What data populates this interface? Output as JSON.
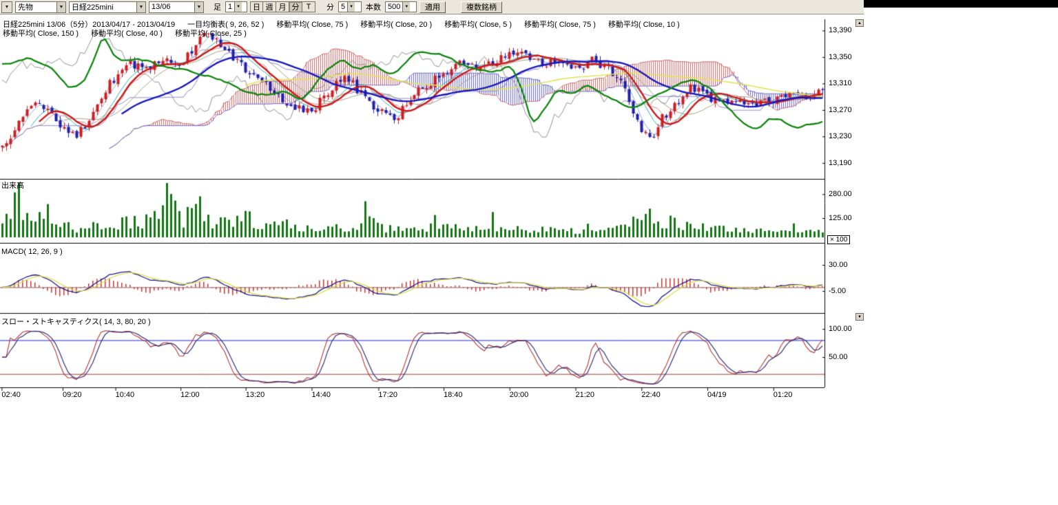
{
  "icons": {
    "dropdown_arrow": "▼",
    "scroll_up": "▲",
    "scroll_down": "▼"
  },
  "toolbar": {
    "category": "先物",
    "symbol": "日経225mini",
    "contract": "13/06",
    "bar_label": "足",
    "bar_value": "1",
    "period_buttons": [
      "日",
      "週",
      "月",
      "分",
      "T"
    ],
    "active_period": "分",
    "minute_label": "分",
    "minute_value": "5",
    "count_label": "本数",
    "count_value": "500",
    "apply_label": "適用",
    "multi_symbol_label": "複数銘柄"
  },
  "header": {
    "line1": [
      "日経225mini 13/06（5分）2013/04/17 - 2013/04/19",
      "一目均衡表( 9, 26, 52 )",
      "移動平均( Close, 75 )",
      "移動平均( Close, 20 )",
      "移動平均( Close, 5 )",
      "移動平均( Close, 75 )",
      "移動平均( Close, 10 )"
    ],
    "line2": [
      "移動平均( Close, 150 )",
      "移動平均( Close, 40 )",
      "移動平均( Close, 25 )"
    ]
  },
  "panels": {
    "volume_label": "出来高",
    "volume_multiplier": "× 100",
    "macd_label": "MACD( 12, 26, 9 )",
    "stoch_label": "スロー・ストキャスティクス( 14, 3, 80, 20 )"
  },
  "colors": {
    "up_candle": "#cc2020",
    "down_candle": "#2020aa",
    "volume": "#157515",
    "green_line": "#0d850d",
    "ma_red": "#cc1818",
    "ma_blue": "#1818bb",
    "ma_yellow": "#e2e258",
    "macd_line": "#1a1a88",
    "macd_signal": "#dcdc50",
    "macd_hist": "#cc3030",
    "stoch_k": "#b03030",
    "stoch_d": "#303078",
    "cloud_up": "#cc6a6a",
    "cloud_down": "#6a6acc"
  },
  "chart_data": {
    "type": "candlestick",
    "symbol": "日経225mini 13/06",
    "interval": "5分",
    "date_range": "2013/04/17 - 2013/04/19",
    "bars_setting": 500,
    "overlays": [
      "一目均衡表(9,26,52)",
      "移動平均 Close 5/10/20/25/40/75/150"
    ],
    "price_axis": {
      "ticks": [
        13390,
        13350,
        13310,
        13270,
        13230,
        13190
      ],
      "max": 13405,
      "min": 13168
    },
    "close_anchors": [
      [
        0,
        13210
      ],
      [
        0.02,
        13255
      ],
      [
        0.045,
        13285
      ],
      [
        0.07,
        13250
      ],
      [
        0.09,
        13230
      ],
      [
        0.11,
        13265
      ],
      [
        0.13,
        13310
      ],
      [
        0.155,
        13340
      ],
      [
        0.175,
        13330
      ],
      [
        0.195,
        13350
      ],
      [
        0.215,
        13335
      ],
      [
        0.235,
        13365
      ],
      [
        0.25,
        13390
      ],
      [
        0.27,
        13360
      ],
      [
        0.3,
        13330
      ],
      [
        0.33,
        13300
      ],
      [
        0.355,
        13275
      ],
      [
        0.375,
        13265
      ],
      [
        0.4,
        13300
      ],
      [
        0.42,
        13320
      ],
      [
        0.44,
        13290
      ],
      [
        0.46,
        13265
      ],
      [
        0.48,
        13260
      ],
      [
        0.5,
        13290
      ],
      [
        0.53,
        13320
      ],
      [
        0.555,
        13340
      ],
      [
        0.58,
        13330
      ],
      [
        0.6,
        13345
      ],
      [
        0.625,
        13360
      ],
      [
        0.65,
        13345
      ],
      [
        0.675,
        13340
      ],
      [
        0.7,
        13330
      ],
      [
        0.72,
        13345
      ],
      [
        0.74,
        13330
      ],
      [
        0.76,
        13300
      ],
      [
        0.775,
        13245
      ],
      [
        0.79,
        13225
      ],
      [
        0.805,
        13260
      ],
      [
        0.82,
        13280
      ],
      [
        0.84,
        13305
      ],
      [
        0.86,
        13290
      ],
      [
        0.88,
        13280
      ],
      [
        0.9,
        13285
      ],
      [
        0.92,
        13278
      ],
      [
        0.94,
        13285
      ],
      [
        0.96,
        13290
      ],
      [
        0.98,
        13292
      ],
      [
        1,
        13300
      ]
    ],
    "green_line_anchors": [
      [
        0,
        13340
      ],
      [
        0.03,
        13350
      ],
      [
        0.06,
        13330
      ],
      [
        0.08,
        13300
      ],
      [
        0.1,
        13320
      ],
      [
        0.122,
        13395
      ],
      [
        0.135,
        13340
      ],
      [
        0.16,
        13350
      ],
      [
        0.19,
        13335
      ],
      [
        0.22,
        13330
      ],
      [
        0.25,
        13320
      ],
      [
        0.28,
        13305
      ],
      [
        0.31,
        13290
      ],
      [
        0.34,
        13300
      ],
      [
        0.36,
        13280
      ],
      [
        0.39,
        13330
      ],
      [
        0.41,
        13350
      ],
      [
        0.43,
        13330
      ],
      [
        0.45,
        13340
      ],
      [
        0.47,
        13320
      ],
      [
        0.5,
        13360
      ],
      [
        0.53,
        13355
      ],
      [
        0.56,
        13335
      ],
      [
        0.58,
        13330
      ],
      [
        0.6,
        13328
      ],
      [
        0.62,
        13340
      ],
      [
        0.635,
        13280
      ],
      [
        0.645,
        13235
      ],
      [
        0.66,
        13280
      ],
      [
        0.675,
        13310
      ],
      [
        0.69,
        13290
      ],
      [
        0.71,
        13310
      ],
      [
        0.73,
        13290
      ],
      [
        0.75,
        13280
      ],
      [
        0.77,
        13270
      ],
      [
        0.79,
        13290
      ],
      [
        0.81,
        13300
      ],
      [
        0.825,
        13310
      ],
      [
        0.84,
        13320
      ],
      [
        0.86,
        13300
      ],
      [
        0.875,
        13280
      ],
      [
        0.89,
        13260
      ],
      [
        0.905,
        13245
      ],
      [
        0.92,
        13240
      ],
      [
        0.935,
        13262
      ],
      [
        0.95,
        13252
      ],
      [
        0.965,
        13242
      ],
      [
        0.98,
        13248
      ],
      [
        1,
        13255
      ]
    ],
    "volume": {
      "ticks": [
        280,
        125
      ],
      "unit": "× 100",
      "anchors": [
        [
          0,
          80
        ],
        [
          0.02,
          260
        ],
        [
          0.03,
          140
        ],
        [
          0.05,
          120
        ],
        [
          0.07,
          100
        ],
        [
          0.09,
          60
        ],
        [
          0.11,
          70
        ],
        [
          0.13,
          90
        ],
        [
          0.15,
          110
        ],
        [
          0.17,
          80
        ],
        [
          0.19,
          150
        ],
        [
          0.2,
          280
        ],
        [
          0.22,
          100
        ],
        [
          0.235,
          290
        ],
        [
          0.25,
          120
        ],
        [
          0.27,
          90
        ],
        [
          0.29,
          130
        ],
        [
          0.31,
          100
        ],
        [
          0.33,
          90
        ],
        [
          0.35,
          80
        ],
        [
          0.37,
          60
        ],
        [
          0.39,
          50
        ],
        [
          0.41,
          60
        ],
        [
          0.43,
          50
        ],
        [
          0.445,
          110
        ],
        [
          0.46,
          70
        ],
        [
          0.48,
          50
        ],
        [
          0.5,
          50
        ],
        [
          0.52,
          60
        ],
        [
          0.54,
          70
        ],
        [
          0.56,
          60
        ],
        [
          0.58,
          70
        ],
        [
          0.6,
          70
        ],
        [
          0.62,
          60
        ],
        [
          0.64,
          50
        ],
        [
          0.66,
          50
        ],
        [
          0.68,
          50
        ],
        [
          0.7,
          45
        ],
        [
          0.72,
          40
        ],
        [
          0.74,
          45
        ],
        [
          0.76,
          60
        ],
        [
          0.775,
          130
        ],
        [
          0.79,
          170
        ],
        [
          0.8,
          110
        ],
        [
          0.82,
          90
        ],
        [
          0.84,
          80
        ],
        [
          0.86,
          70
        ],
        [
          0.88,
          50
        ],
        [
          0.9,
          45
        ],
        [
          0.92,
          40
        ],
        [
          0.94,
          35
        ],
        [
          0.96,
          40
        ],
        [
          0.98,
          40
        ],
        [
          1,
          45
        ]
      ]
    },
    "macd": {
      "params": [
        12,
        26,
        9
      ],
      "ticks": [
        30,
        -5
      ]
    },
    "stoch": {
      "params": [
        14,
        3,
        80,
        20
      ],
      "ticks": [
        100,
        50
      ],
      "ref_lines": [
        80,
        20
      ]
    },
    "time_axis": {
      "labels": [
        "02:40",
        "09:20",
        "10:40",
        "12:00",
        "13:20",
        "14:40",
        "17:20",
        "18:40",
        "20:00",
        "21:20",
        "22:40",
        "04/19",
        "01:20"
      ],
      "positions": [
        0.002,
        0.076,
        0.14,
        0.219,
        0.298,
        0.378,
        0.459,
        0.538,
        0.618,
        0.698,
        0.778,
        0.858,
        0.938
      ]
    }
  }
}
